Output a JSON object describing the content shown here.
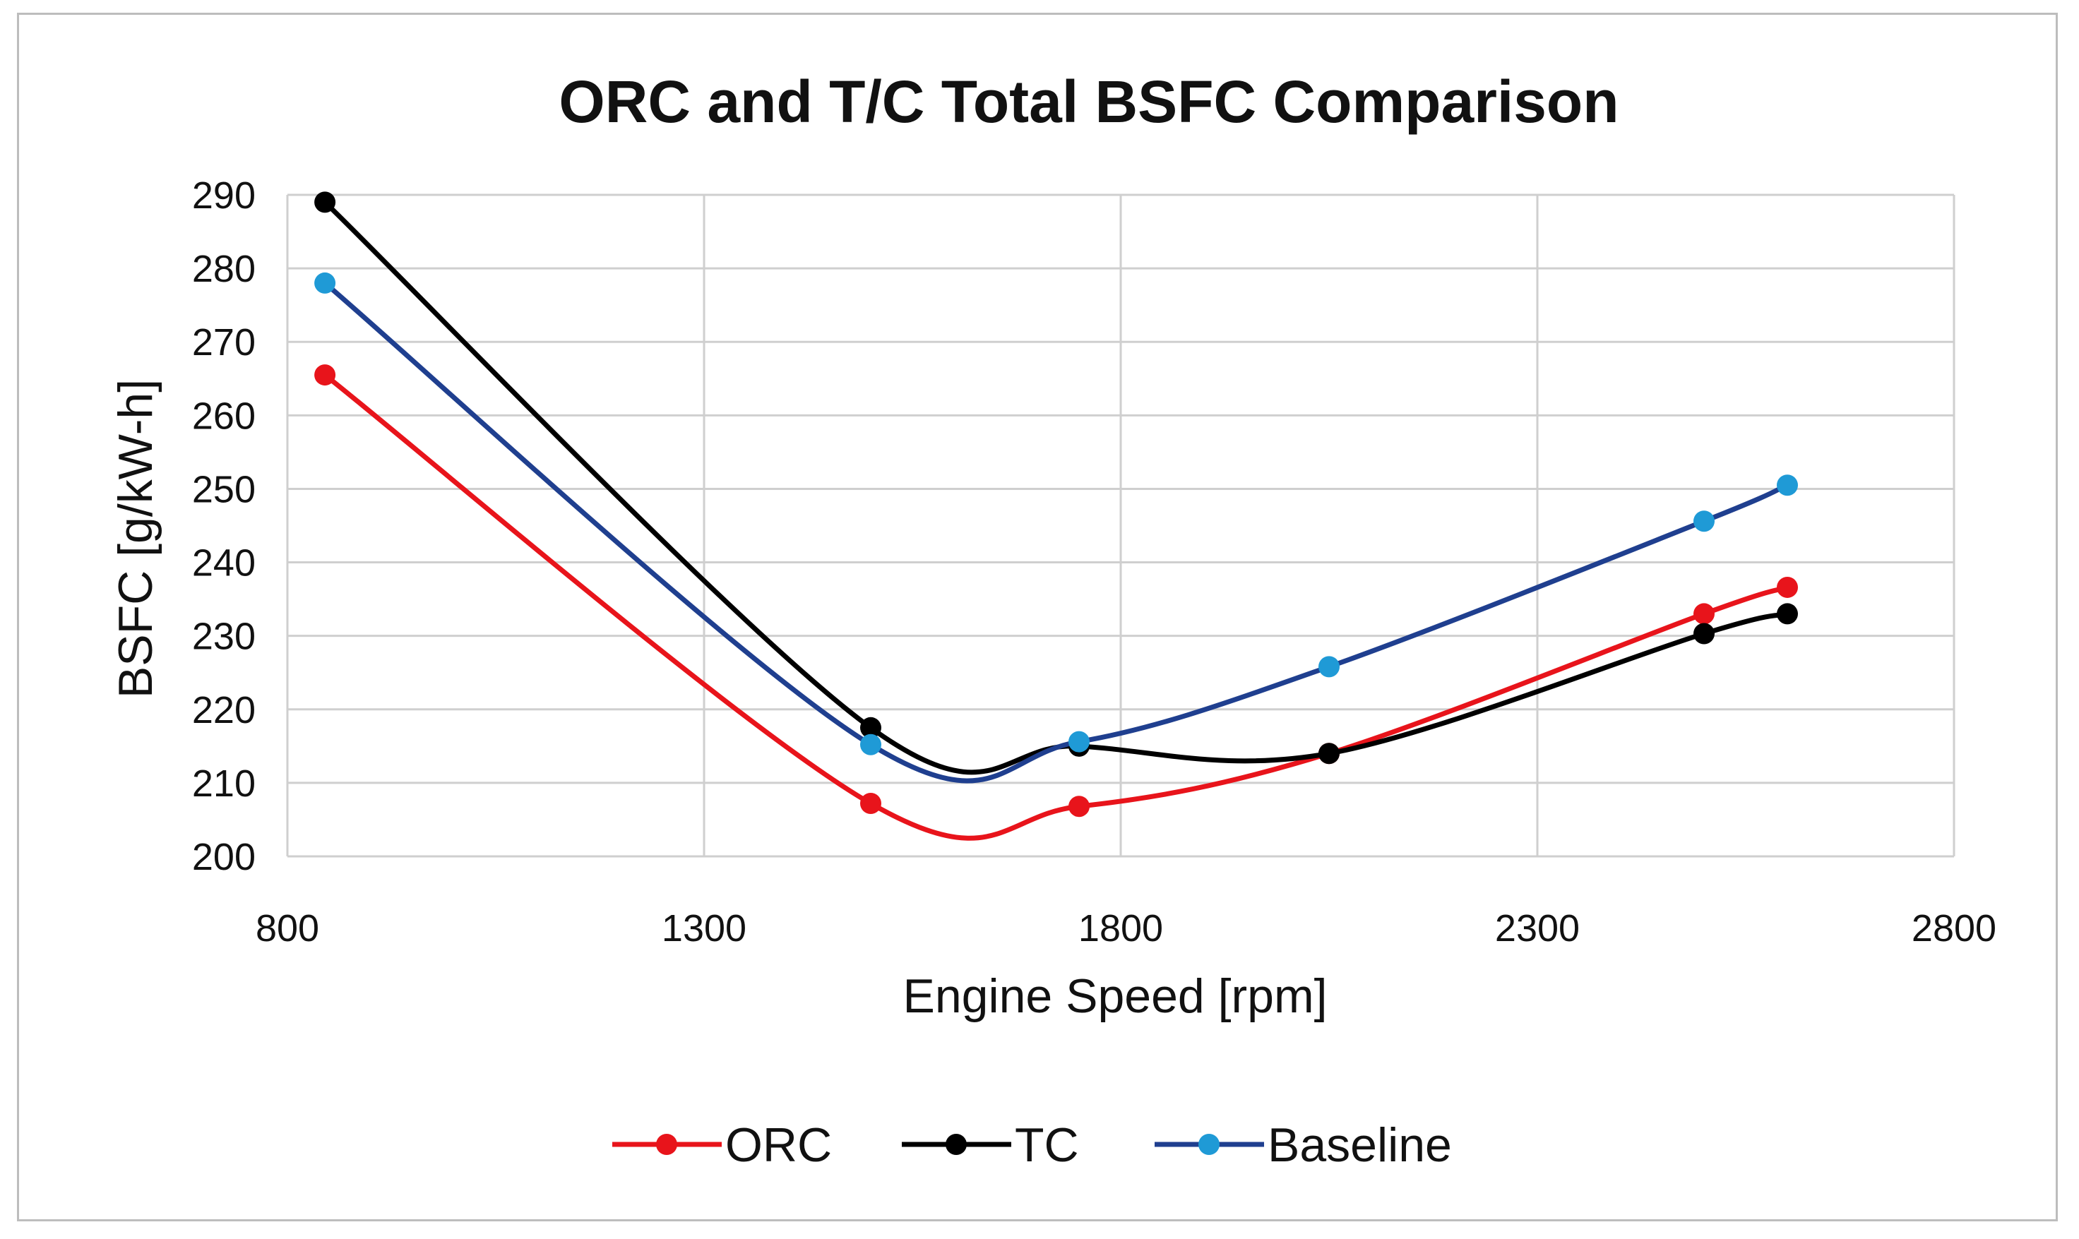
{
  "chart_data": {
    "type": "line",
    "title": "ORC and T/C Total BSFC Comparison",
    "xlabel": "Engine Speed [rpm]",
    "ylabel": "BSFC [g/kW-h]",
    "xlim": [
      800,
      2800
    ],
    "ylim": [
      200,
      290
    ],
    "x_ticks": [
      "800",
      "1300",
      "1800",
      "2300",
      "2800"
    ],
    "y_ticks": [
      "200",
      "210",
      "220",
      "230",
      "240",
      "250",
      "260",
      "270",
      "280",
      "290"
    ],
    "grid": true,
    "smoothed": true,
    "legend_position": "bottom",
    "series": [
      {
        "name": "ORC",
        "color": "#e8141b",
        "points": [
          [
            845,
            265.5
          ],
          [
            1500,
            207.2
          ],
          [
            1750,
            206.8
          ],
          [
            2050,
            214.0
          ],
          [
            2500,
            233.0
          ],
          [
            2600,
            236.6
          ]
        ]
      },
      {
        "name": "TC",
        "color": "#000000",
        "points": [
          [
            845,
            289.0
          ],
          [
            1500,
            217.5
          ],
          [
            1750,
            215.0
          ],
          [
            2050,
            214.0
          ],
          [
            2500,
            230.3
          ],
          [
            2600,
            233.0
          ]
        ]
      },
      {
        "name": "Baseline",
        "color": "#1f3f8f",
        "marker_color": "#1f9ad6",
        "points": [
          [
            845,
            278.0
          ],
          [
            1500,
            215.2
          ],
          [
            1750,
            215.6
          ],
          [
            2050,
            225.8
          ],
          [
            2500,
            245.6
          ],
          [
            2600,
            250.5
          ]
        ]
      }
    ]
  }
}
